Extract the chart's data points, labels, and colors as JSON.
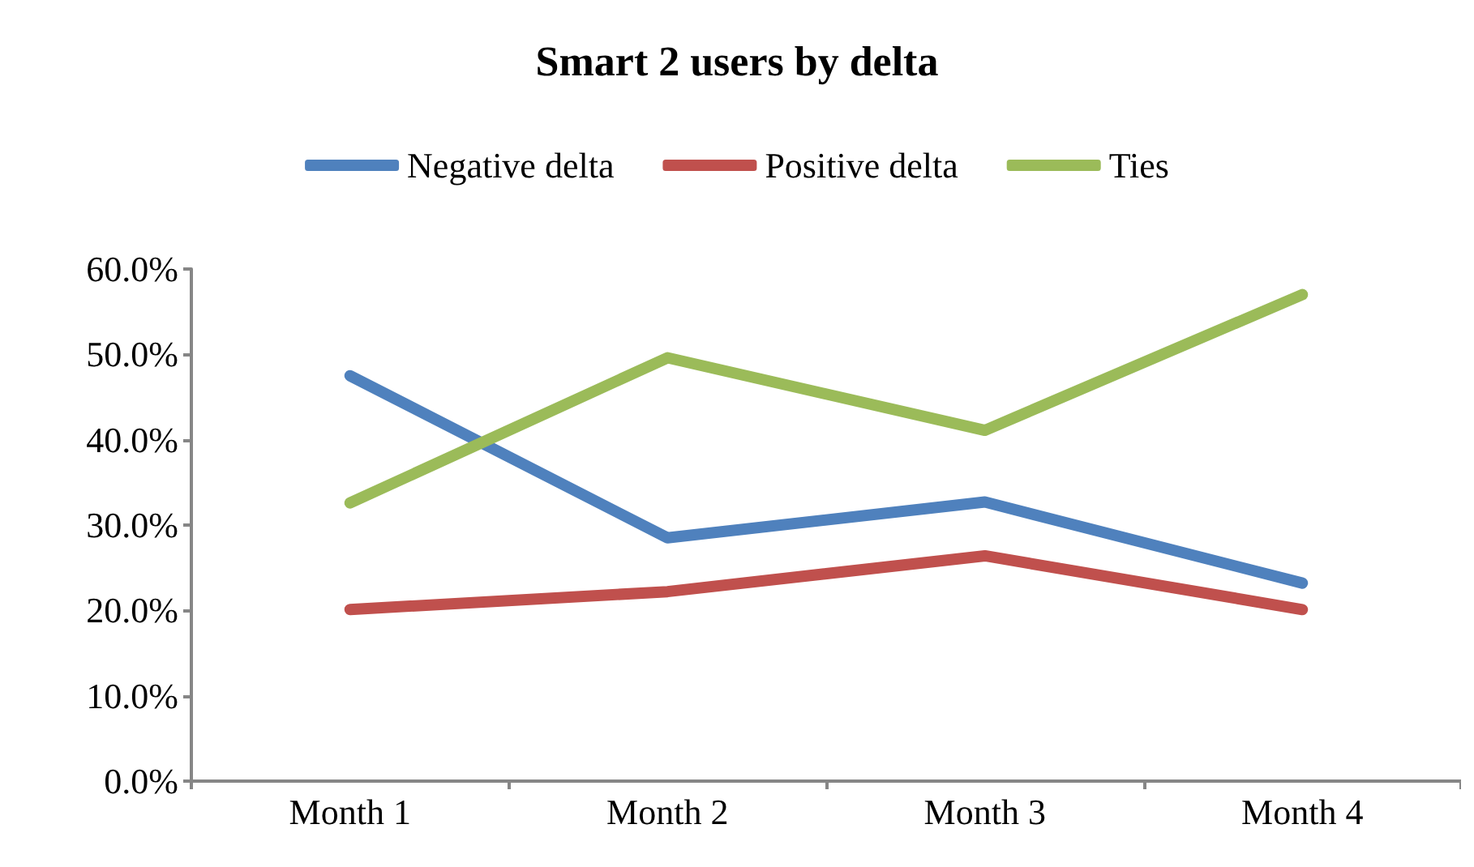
{
  "chart_data": {
    "type": "line",
    "title": "Smart 2 users by delta",
    "categories": [
      "Month 1",
      "Month 2",
      "Month 3",
      "Month 4"
    ],
    "series": [
      {
        "name": "Negative delta",
        "color": "#4f81bd",
        "values": [
          47.5,
          28.5,
          32.7,
          23.2
        ]
      },
      {
        "name": "Positive delta",
        "color": "#c0504d",
        "values": [
          20.1,
          22.2,
          26.4,
          20.1
        ]
      },
      {
        "name": "Ties",
        "color": "#9bbb59",
        "values": [
          32.6,
          49.6,
          41.1,
          57.0
        ]
      }
    ],
    "ylim": [
      0,
      60
    ],
    "yticks": [
      {
        "value": 0,
        "label": "0.0%"
      },
      {
        "value": 10,
        "label": "10.0%"
      },
      {
        "value": 20,
        "label": "20.0%"
      },
      {
        "value": 30,
        "label": "30.0%"
      },
      {
        "value": 40,
        "label": "40.0%"
      },
      {
        "value": 50,
        "label": "50.0%"
      },
      {
        "value": 60,
        "label": "60.0%"
      }
    ],
    "grid": false,
    "legend": "top",
    "marker": "none",
    "line_style": "solid"
  }
}
